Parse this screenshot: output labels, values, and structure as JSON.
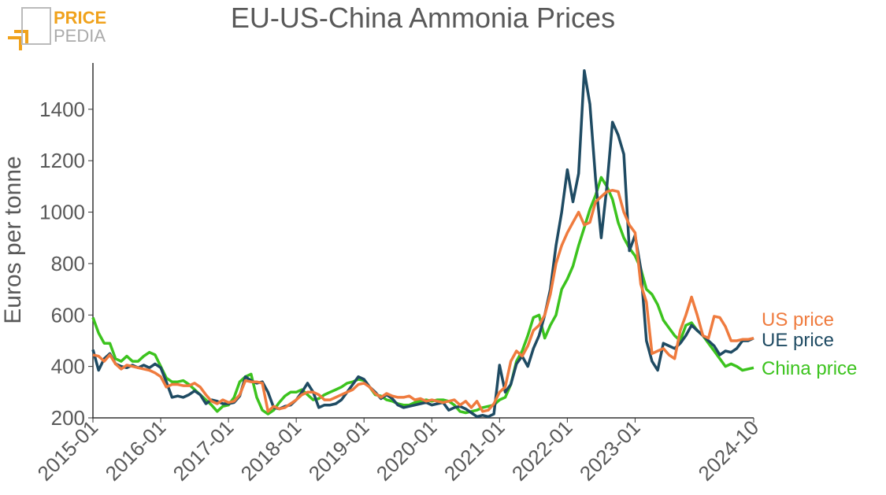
{
  "logo": {
    "top": "PRICE",
    "bottom": "PEDIA"
  },
  "chart_data": {
    "type": "line",
    "title": "EU-US-China Ammonia Prices",
    "y_label": "Euros per tonne",
    "x": [
      "2015-01",
      "2015-02",
      "2015-03",
      "2015-04",
      "2015-05",
      "2015-06",
      "2015-07",
      "2015-08",
      "2015-09",
      "2015-10",
      "2015-11",
      "2015-12",
      "2016-01",
      "2016-02",
      "2016-03",
      "2016-04",
      "2016-05",
      "2016-06",
      "2016-07",
      "2016-08",
      "2016-09",
      "2016-10",
      "2016-11",
      "2016-12",
      "2017-01",
      "2017-02",
      "2017-03",
      "2017-04",
      "2017-05",
      "2017-06",
      "2017-07",
      "2017-08",
      "2017-09",
      "2017-10",
      "2017-11",
      "2017-12",
      "2018-01",
      "2018-02",
      "2018-03",
      "2018-04",
      "2018-05",
      "2018-06",
      "2018-07",
      "2018-08",
      "2018-09",
      "2018-10",
      "2018-11",
      "2018-12",
      "2019-01",
      "2019-02",
      "2019-03",
      "2019-04",
      "2019-05",
      "2019-06",
      "2019-07",
      "2019-08",
      "2019-09",
      "2019-10",
      "2019-11",
      "2019-12",
      "2020-01",
      "2020-02",
      "2020-03",
      "2020-04",
      "2020-05",
      "2020-06",
      "2020-07",
      "2020-08",
      "2020-09",
      "2020-10",
      "2020-11",
      "2020-12",
      "2021-01",
      "2021-02",
      "2021-03",
      "2021-04",
      "2021-05",
      "2021-06",
      "2021-07",
      "2021-08",
      "2021-09",
      "2021-10",
      "2021-11",
      "2021-12",
      "2022-01",
      "2022-02",
      "2022-03",
      "2022-04",
      "2022-05",
      "2022-06",
      "2022-07",
      "2022-08",
      "2022-09",
      "2022-10",
      "2022-11",
      "2022-12",
      "2023-01",
      "2023-02",
      "2023-03",
      "2023-04",
      "2023-05",
      "2023-06",
      "2023-07",
      "2023-08",
      "2023-09",
      "2023-10",
      "2023-11",
      "2023-12",
      "2024-01",
      "2024-02",
      "2024-03",
      "2024-04",
      "2024-05",
      "2024-06",
      "2024-07",
      "2024-08",
      "2024-09",
      "2024-10"
    ],
    "xticks": [
      "2015-01",
      "2016-01",
      "2017-01",
      "2018-01",
      "2019-01",
      "2020-01",
      "2021-01",
      "2022-01",
      "2023-01",
      "2024-10"
    ],
    "ylim": [
      200,
      1580
    ],
    "yticks": [
      200,
      400,
      600,
      800,
      1000,
      1200,
      1400
    ],
    "series": [
      {
        "name": "US price",
        "color": "#ef7b3e",
        "values": [
          445,
          440,
          420,
          445,
          410,
          390,
          405,
          400,
          395,
          390,
          385,
          375,
          360,
          320,
          330,
          330,
          325,
          325,
          335,
          320,
          290,
          265,
          255,
          270,
          260,
          265,
          290,
          345,
          340,
          340,
          335,
          225,
          245,
          235,
          240,
          255,
          270,
          290,
          300,
          300,
          290,
          270,
          270,
          280,
          290,
          300,
          310,
          330,
          335,
          320,
          295,
          280,
          295,
          285,
          280,
          280,
          285,
          270,
          275,
          265,
          270,
          265,
          260,
          265,
          270,
          250,
          265,
          240,
          265,
          225,
          230,
          255,
          300,
          320,
          420,
          460,
          440,
          480,
          540,
          560,
          600,
          680,
          800,
          870,
          920,
          960,
          1000,
          950,
          960,
          1040,
          1060,
          1080,
          1085,
          1080,
          1000,
          950,
          920,
          720,
          650,
          450,
          460,
          470,
          445,
          430,
          540,
          600,
          670,
          600,
          520,
          510,
          595,
          590,
          555,
          500,
          500,
          505,
          505,
          510
        ]
      },
      {
        "name": "UE price",
        "color": "#1f4b63",
        "values": [
          465,
          385,
          430,
          450,
          410,
          400,
          395,
          405,
          395,
          405,
          395,
          410,
          395,
          340,
          280,
          285,
          280,
          290,
          305,
          290,
          255,
          270,
          265,
          255,
          255,
          260,
          285,
          360,
          345,
          335,
          340,
          300,
          240,
          235,
          245,
          250,
          270,
          300,
          335,
          300,
          240,
          250,
          250,
          255,
          270,
          300,
          330,
          360,
          350,
          320,
          300,
          275,
          290,
          275,
          250,
          240,
          245,
          250,
          255,
          260,
          250,
          255,
          260,
          230,
          240,
          245,
          235,
          220,
          205,
          210,
          205,
          215,
          405,
          300,
          330,
          410,
          440,
          400,
          470,
          520,
          600,
          700,
          870,
          1000,
          1165,
          1040,
          1150,
          1550,
          1420,
          1130,
          900,
          1100,
          1350,
          1300,
          1225,
          850,
          910,
          780,
          500,
          420,
          385,
          490,
          480,
          470,
          490,
          520,
          560,
          540,
          520,
          500,
          480,
          445,
          460,
          455,
          470,
          500,
          500,
          510
        ]
      },
      {
        "name": "China price",
        "color": "#3cc31e",
        "values": [
          590,
          530,
          490,
          490,
          430,
          420,
          440,
          420,
          420,
          440,
          455,
          445,
          400,
          355,
          340,
          340,
          345,
          330,
          310,
          290,
          270,
          250,
          225,
          245,
          250,
          280,
          340,
          360,
          370,
          280,
          230,
          215,
          230,
          260,
          285,
          300,
          300,
          310,
          290,
          270,
          275,
          290,
          300,
          310,
          320,
          335,
          340,
          350,
          345,
          320,
          290,
          285,
          270,
          265,
          255,
          250,
          250,
          260,
          265,
          270,
          265,
          270,
          270,
          265,
          250,
          225,
          220,
          225,
          230,
          240,
          245,
          250,
          270,
          280,
          330,
          420,
          460,
          520,
          590,
          600,
          510,
          560,
          600,
          700,
          740,
          790,
          870,
          940,
          1010,
          1065,
          1135,
          1100,
          1050,
          960,
          900,
          860,
          830,
          780,
          700,
          680,
          640,
          580,
          550,
          520,
          500,
          560,
          570,
          540,
          520,
          490,
          460,
          430,
          400,
          410,
          400,
          385,
          390,
          395
        ]
      }
    ]
  }
}
